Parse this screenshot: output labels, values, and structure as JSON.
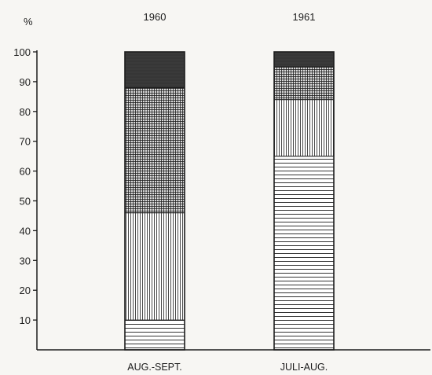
{
  "chart_data": {
    "type": "bar",
    "stacked": true,
    "title": "",
    "xlabel": "",
    "ylabel": "%",
    "ylim": [
      0,
      100
    ],
    "yticks": [
      10,
      20,
      30,
      40,
      50,
      60,
      70,
      80,
      90,
      100
    ],
    "grid": false,
    "legend": "none",
    "groups": [
      "1960",
      "1961"
    ],
    "categories": [
      "AUG.-SEPT.",
      "JULI-AUG."
    ],
    "series": [
      {
        "pattern": "horizontal-lines",
        "values": [
          10,
          65
        ]
      },
      {
        "pattern": "vertical-lines",
        "values": [
          36,
          19
        ]
      },
      {
        "pattern": "cross-hatch",
        "values": [
          42,
          11
        ]
      },
      {
        "pattern": "solid-dark",
        "values": [
          12,
          5
        ]
      }
    ],
    "colors": {
      "ink": "#1d1d1d",
      "dark_fill": "#3a3a3a",
      "paper": "#f7f6f3"
    }
  }
}
